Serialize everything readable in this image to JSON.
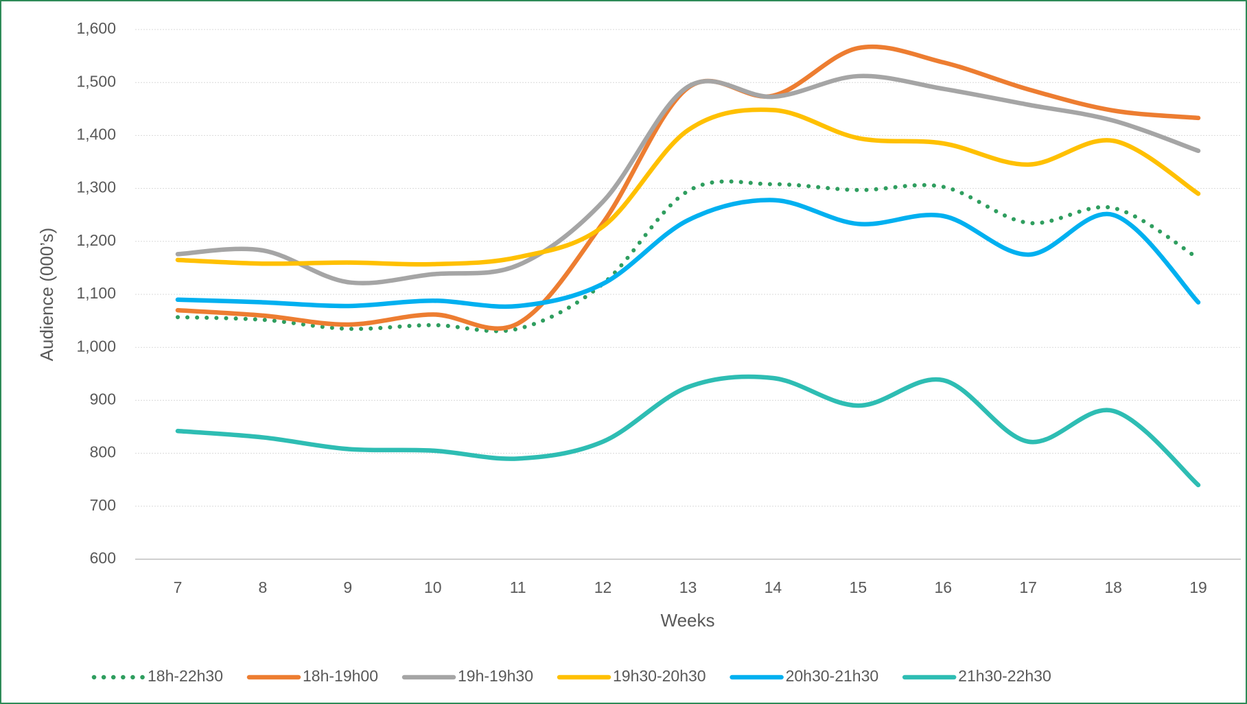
{
  "chart_data": {
    "type": "line",
    "x_label": "Weeks",
    "y_label": "Audience (000’s)",
    "x": [
      7,
      8,
      9,
      10,
      11,
      12,
      13,
      14,
      15,
      16,
      17,
      18,
      19
    ],
    "xlim": [
      6.5,
      19.5
    ],
    "xticks": [
      7,
      8,
      9,
      10,
      11,
      12,
      13,
      14,
      15,
      16,
      17,
      18,
      19
    ],
    "ylim": [
      600,
      1600
    ],
    "yticks": [
      600,
      700,
      800,
      900,
      {
        "value": 1000,
        "label": "1,000"
      },
      {
        "value": 1100,
        "label": "1,100"
      },
      {
        "value": 1200,
        "label": "1,200"
      },
      {
        "value": 1300,
        "label": "1,300"
      },
      {
        "value": 1400,
        "label": "1,400"
      },
      {
        "value": 1500,
        "label": "1,500"
      },
      {
        "value": 1600,
        "label": "1,600"
      }
    ],
    "grid": true,
    "smooth": true,
    "legend": "bottom",
    "series": [
      {
        "name": "18h-22h30",
        "color": "#2f9e5f",
        "dotted": true,
        "values": [
          1057,
          1052,
          1035,
          1042,
          1035,
          1120,
          1295,
          1308,
          1297,
          1303,
          1235,
          1263,
          1168
        ]
      },
      {
        "name": "18h-19h00",
        "color": "#ed7d31",
        "values": [
          1070,
          1060,
          1043,
          1062,
          1045,
          1235,
          1490,
          1475,
          1565,
          1538,
          1487,
          1447,
          1433
        ]
      },
      {
        "name": "19h-19h30",
        "color": "#a5a5a5",
        "values": [
          1176,
          1183,
          1123,
          1138,
          1155,
          1275,
          1492,
          1473,
          1512,
          1488,
          1458,
          1428,
          1371
        ]
      },
      {
        "name": "19h30-20h30",
        "color": "#ffc000",
        "values": [
          1165,
          1158,
          1160,
          1157,
          1170,
          1228,
          1410,
          1448,
          1395,
          1385,
          1345,
          1390,
          1290
        ]
      },
      {
        "name": "20h30-21h30",
        "color": "#00b0f0",
        "values": [
          1090,
          1085,
          1078,
          1088,
          1078,
          1120,
          1240,
          1278,
          1233,
          1248,
          1175,
          1250,
          1085
        ]
      },
      {
        "name": "21h30-22h30",
        "color": "#2ebdb3",
        "values": [
          842,
          830,
          808,
          805,
          790,
          822,
          925,
          942,
          890,
          938,
          822,
          880,
          740
        ]
      }
    ]
  }
}
